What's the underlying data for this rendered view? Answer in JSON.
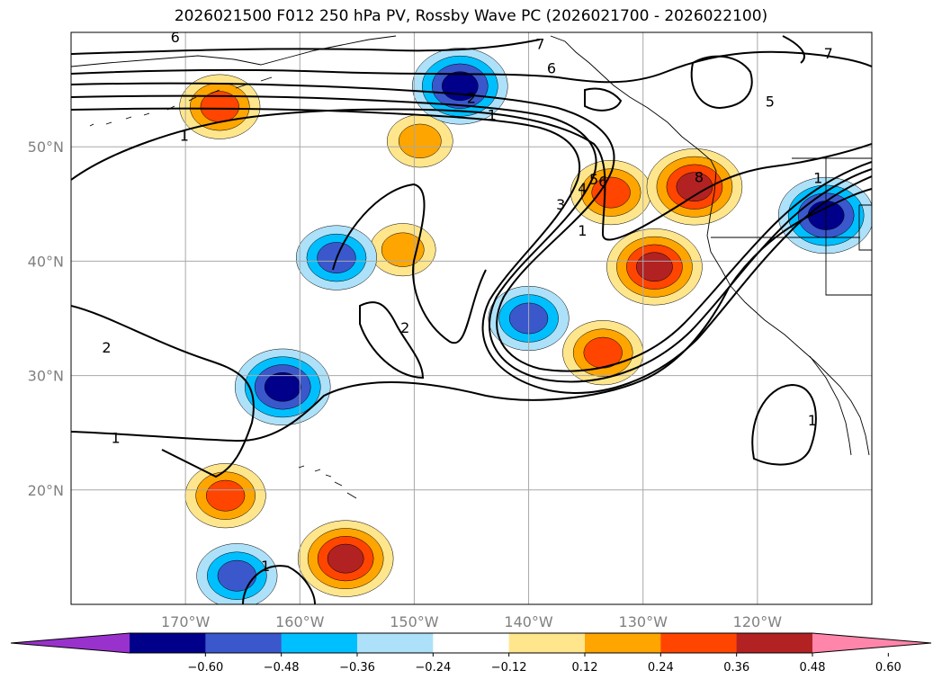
{
  "title": "2026021500 F012 250 hPa PV, Rossby Wave PC (2026021700 - 2026022100)",
  "map": {
    "projection": "PlateCarree",
    "extent": {
      "lon_min": -180,
      "lon_max": -110,
      "lat_min": 10,
      "lat_max": 60
    },
    "lat_ticks": [
      {
        "value": 50,
        "label": "50°N"
      },
      {
        "value": 40,
        "label": "40°N"
      },
      {
        "value": 30,
        "label": "30°N"
      },
      {
        "value": 20,
        "label": "20°N"
      }
    ],
    "lon_ticks": [
      {
        "value": -170,
        "label": "170°W"
      },
      {
        "value": -160,
        "label": "160°W"
      },
      {
        "value": -150,
        "label": "150°W"
      },
      {
        "value": -140,
        "label": "140°W"
      },
      {
        "value": -130,
        "label": "130°W"
      },
      {
        "value": -120,
        "label": "120°W"
      }
    ],
    "gridlines": true
  },
  "contours": {
    "variable": "250 hPa PV",
    "color": "#000000",
    "labels": [
      {
        "text": "6",
        "lon": -170.9,
        "lat": 59.6
      },
      {
        "text": "7",
        "lon": -139.0,
        "lat": 59.0
      },
      {
        "text": "6",
        "lon": -138.0,
        "lat": 56.9
      },
      {
        "text": "7",
        "lon": -113.8,
        "lat": 58.2
      },
      {
        "text": "5",
        "lon": -118.9,
        "lat": 54.0
      },
      {
        "text": "2",
        "lon": -145.0,
        "lat": 54.3
      },
      {
        "text": "1",
        "lon": -143.2,
        "lat": 52.8
      },
      {
        "text": "1",
        "lon": -170.1,
        "lat": 51.0
      },
      {
        "text": "5",
        "lon": -134.3,
        "lat": 47.2
      },
      {
        "text": "6",
        "lon": -133.5,
        "lat": 47.0
      },
      {
        "text": "4",
        "lon": -135.3,
        "lat": 46.4
      },
      {
        "text": "3",
        "lon": -137.2,
        "lat": 45.0
      },
      {
        "text": "1",
        "lon": -135.3,
        "lat": 42.7
      },
      {
        "text": "8",
        "lon": -125.1,
        "lat": 47.4
      },
      {
        "text": "1",
        "lon": -114.7,
        "lat": 47.3
      },
      {
        "text": "2",
        "lon": -150.8,
        "lat": 34.2
      },
      {
        "text": "2",
        "lon": -176.9,
        "lat": 32.5
      },
      {
        "text": "1",
        "lon": -176.1,
        "lat": 24.6
      },
      {
        "text": "1",
        "lon": -115.2,
        "lat": 26.1
      },
      {
        "text": "1",
        "lon": -163.0,
        "lat": 13.4
      }
    ]
  },
  "shading": {
    "variable": "Rossby Wave PC",
    "anomalies": [
      {
        "sign": "positive",
        "peak": 0.36,
        "lon": -167,
        "lat": 53.5
      },
      {
        "sign": "positive",
        "peak": 0.24,
        "lon": -149.5,
        "lat": 50.5
      },
      {
        "sign": "positive",
        "peak": 0.24,
        "lon": -151,
        "lat": 41
      },
      {
        "sign": "positive",
        "peak": 0.36,
        "lon": -132.8,
        "lat": 46
      },
      {
        "sign": "positive",
        "peak": 0.48,
        "lon": -125.5,
        "lat": 46.5
      },
      {
        "sign": "positive",
        "peak": 0.48,
        "lon": -129,
        "lat": 39.5
      },
      {
        "sign": "positive",
        "peak": 0.36,
        "lon": -133.5,
        "lat": 32
      },
      {
        "sign": "positive",
        "peak": 0.36,
        "lon": -166.5,
        "lat": 19.5
      },
      {
        "sign": "positive",
        "peak": 0.48,
        "lon": -156,
        "lat": 14
      },
      {
        "sign": "negative",
        "peak": -0.48,
        "lon": -146,
        "lat": 55.3
      },
      {
        "sign": "negative",
        "peak": -0.36,
        "lon": -140,
        "lat": 35
      },
      {
        "sign": "negative",
        "peak": -0.36,
        "lon": -156.8,
        "lat": 40.3
      },
      {
        "sign": "negative",
        "peak": -0.48,
        "lon": -161.5,
        "lat": 29
      },
      {
        "sign": "negative",
        "peak": -0.48,
        "lon": -114,
        "lat": 44
      },
      {
        "sign": "negative",
        "peak": -0.36,
        "lon": -165.5,
        "lat": 12.5
      }
    ]
  },
  "colorbar": {
    "ticks": [
      "−0.60",
      "−0.48",
      "−0.36",
      "−0.24",
      "−0.12",
      "0.12",
      "0.24",
      "0.36",
      "0.48",
      "0.60"
    ],
    "colors": [
      "#9932cc",
      "#00008b",
      "#3a58cc",
      "#00bfff",
      "#ade1f9",
      "#ffffff",
      "#ffe68c",
      "#ffa500",
      "#ff4500",
      "#b22222",
      "#ff85ab"
    ],
    "extend": "both"
  }
}
